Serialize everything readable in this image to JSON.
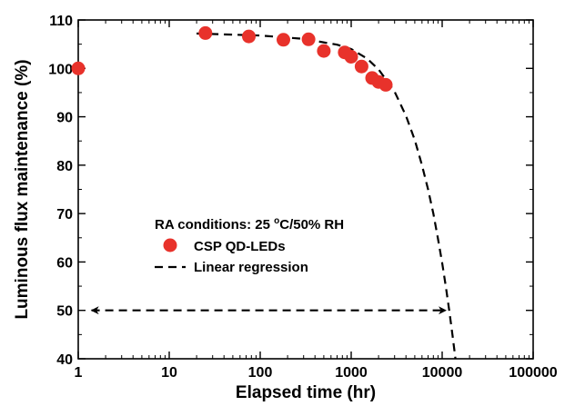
{
  "chart_data": {
    "type": "scatter",
    "xlabel": "Elapsed time (hr)",
    "ylabel": "Luminous flux maintenance (%)",
    "xscale": "log",
    "xlim": [
      1,
      100000
    ],
    "ylim": [
      40,
      110
    ],
    "x_ticks": [
      1,
      10,
      100,
      1000,
      10000,
      100000
    ],
    "x_tick_labels": [
      "1",
      "10",
      "100",
      "1000",
      "10000",
      "100000"
    ],
    "y_ticks": [
      40,
      50,
      60,
      70,
      80,
      90,
      100,
      110
    ],
    "y_tick_labels": [
      "40",
      "50",
      "60",
      "70",
      "80",
      "90",
      "100",
      "110"
    ],
    "legend": {
      "title_prefix": "RA conditions: 25 ",
      "title_degree": "o",
      "title_suffix": "C/50% RH",
      "placement": "center-left"
    },
    "series": [
      {
        "name": "CSP QD-LEDs",
        "kind": "scatter",
        "color": "#e8322b",
        "x": [
          1,
          25,
          75,
          180,
          340,
          500,
          850,
          1000,
          1300,
          1700,
          2000,
          2400
        ],
        "y": [
          100.0,
          107.3,
          106.6,
          105.9,
          106.0,
          103.6,
          103.3,
          102.4,
          100.4,
          98.0,
          97.2,
          96.6
        ]
      },
      {
        "name": "Linear regression",
        "kind": "dashed-line",
        "color": "#000000",
        "x": [
          20,
          100,
          300,
          700,
          1000,
          1500,
          2000,
          3000,
          4000,
          5000,
          6000,
          7000,
          8000,
          9000,
          10000,
          11000,
          12000,
          13000,
          14000
        ],
        "y": [
          107.2,
          106.8,
          106.1,
          104.9,
          104.0,
          102.0,
          99.8,
          95.2,
          90.2,
          85.2,
          80.0,
          75.0,
          70.0,
          64.8,
          59.8,
          54.8,
          49.8,
          44.8,
          40.0
        ]
      }
    ],
    "annotation": {
      "type": "double-arrow",
      "x_from": 1.4,
      "x_to": 11000,
      "y": 50
    }
  }
}
